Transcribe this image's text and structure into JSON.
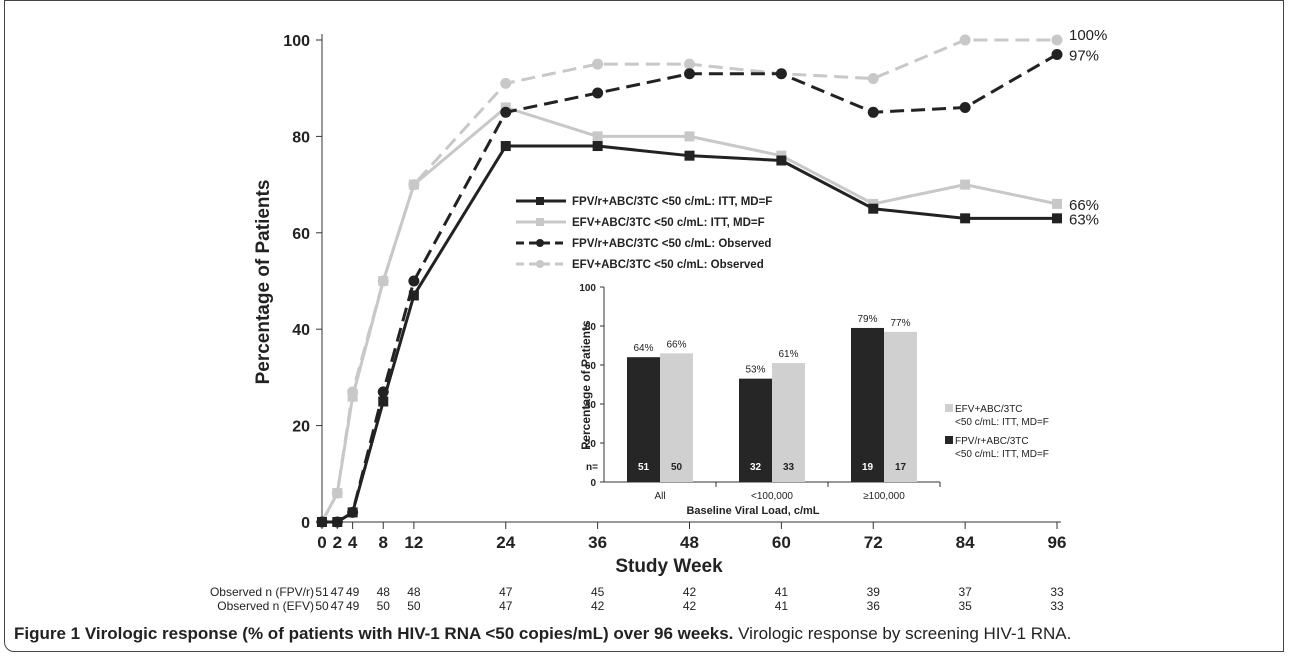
{
  "chart_data": [
    {
      "type": "line",
      "xlabel": "Study Week",
      "ylabel": "Percentage of Patients",
      "xlim": [
        0,
        96
      ],
      "ylim": [
        0,
        100
      ],
      "x_ticks": [
        0,
        2,
        4,
        8,
        12,
        24,
        36,
        48,
        60,
        72,
        84,
        96
      ],
      "y_ticks": [
        0,
        20,
        40,
        60,
        80,
        100
      ],
      "legend_position": "center",
      "series": [
        {
          "name": "FPV/r+ABC/3TC <50 c/mL: ITT, MD=F",
          "color": "#222222",
          "style": "solid",
          "marker": "square",
          "x": [
            0,
            2,
            4,
            8,
            12,
            24,
            36,
            48,
            60,
            72,
            84,
            96
          ],
          "y": [
            0,
            0,
            2,
            25,
            47,
            78,
            78,
            76,
            75,
            65,
            63,
            63
          ],
          "end_label": "63%"
        },
        {
          "name": "EFV+ABC/3TC <50 c/mL:  ITT, MD=F",
          "color": "#c8c8c8",
          "style": "solid",
          "marker": "square",
          "x": [
            0,
            2,
            4,
            8,
            12,
            24,
            36,
            48,
            60,
            72,
            84,
            96
          ],
          "y": [
            0,
            6,
            26,
            50,
            70,
            86,
            80,
            80,
            76,
            66,
            70,
            66
          ],
          "end_label": "66%"
        },
        {
          "name": "FPV/r+ABC/3TC <50 c/mL: Observed",
          "color": "#222222",
          "style": "dashed",
          "marker": "circle",
          "x": [
            0,
            2,
            4,
            8,
            12,
            24,
            36,
            48,
            60,
            72,
            84,
            96
          ],
          "y": [
            0,
            0,
            2,
            27,
            50,
            85,
            89,
            93,
            93,
            85,
            86,
            97
          ],
          "end_label": "97%"
        },
        {
          "name": "EFV+ABC/3TC <50 c/mL: Observed",
          "color": "#c8c8c8",
          "style": "dashed",
          "marker": "circle",
          "x": [
            0,
            2,
            4,
            8,
            12,
            24,
            36,
            48,
            60,
            72,
            84,
            96
          ],
          "y": [
            0,
            6,
            27,
            50,
            70,
            91,
            95,
            95,
            93,
            92,
            100,
            100
          ],
          "end_label": "100%"
        }
      ],
      "observed_n": [
        {
          "label": "Observed n (FPV/r)",
          "values": [
            51,
            47,
            49,
            48,
            48,
            47,
            45,
            42,
            41,
            39,
            37,
            33
          ]
        },
        {
          "label": "Observed n (EFV)",
          "values": [
            50,
            47,
            49,
            50,
            50,
            47,
            42,
            42,
            41,
            36,
            35,
            33
          ]
        }
      ]
    },
    {
      "type": "bar",
      "xlabel": "Baseline Viral Load, c/mL",
      "ylabel": "Percentage of Patients",
      "ylim": [
        0,
        100
      ],
      "y_ticks": [
        0,
        20,
        40,
        60,
        80,
        100
      ],
      "categories": [
        "All",
        "<100,000",
        "≥100,000"
      ],
      "n_prefix": "n=",
      "legend_position": "right",
      "series": [
        {
          "name": "FPV/r+ABC/3TC <50 c/mL: ITT, MD=F",
          "color": "#262626",
          "values": [
            64,
            53,
            79
          ],
          "value_labels": [
            "64%",
            "53%",
            "79%"
          ],
          "n": [
            51,
            32,
            19
          ]
        },
        {
          "name": "EFV+ABC/3TC <50 c/mL: ITT, MD=F",
          "color": "#d0d0d0",
          "values": [
            66,
            61,
            77
          ],
          "value_labels": [
            "66%",
            "61%",
            "77%"
          ],
          "n": [
            50,
            33,
            17
          ]
        }
      ]
    }
  ],
  "caption": {
    "bold": "Figure 1 Virologic response (% of patients with HIV-1 RNA <50 copies/mL) over 96 weeks.",
    "text": " Virologic response by screening HIV-1 RNA."
  }
}
